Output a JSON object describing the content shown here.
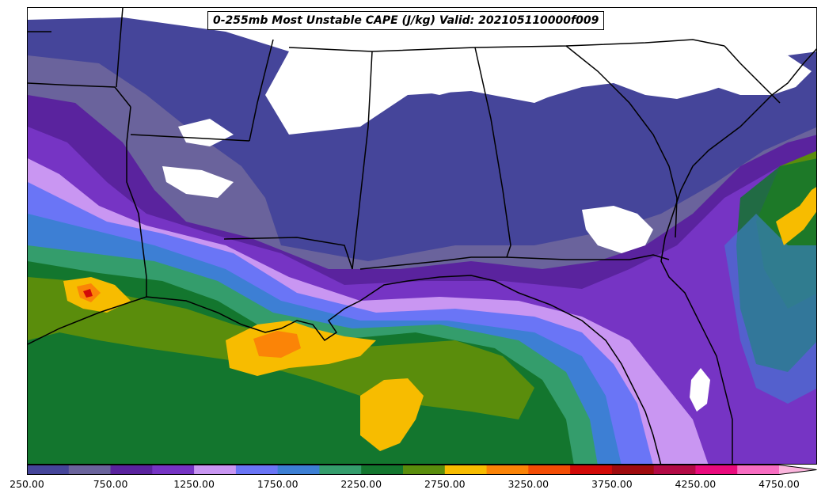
{
  "title": "0-255mb Most Unstable CAPE (J/kg) Valid: 202105110000f009",
  "colorbar": {
    "min": 250,
    "max": 5000,
    "step": 250,
    "extend": "max",
    "tick_labels": [
      "250.00",
      "750.00",
      "1250.00",
      "1750.00",
      "2250.00",
      "2750.00",
      "3250.00",
      "3750.00",
      "4250.00",
      "4750.00"
    ],
    "tick_values": [
      250,
      750,
      1250,
      1750,
      2250,
      2750,
      3250,
      3750,
      4250,
      4750
    ],
    "colors": [
      "#45459a",
      "#6a639c",
      "#5a239e",
      "#7634c4",
      "#c996f2",
      "#6a75f6",
      "#3d7fd4",
      "#349d6c",
      "#13762e",
      "#5a8d0c",
      "#f7bc00",
      "#fb8407",
      "#f34d05",
      "#d20a08",
      "#9f0b0e",
      "#b20a45",
      "#ea0a7d",
      "#f86dc2",
      "#fbb5dd"
    ]
  },
  "map_layers": {
    "background": "#ffffff",
    "coastline": "#000000",
    "state_borders": "#000000"
  }
}
